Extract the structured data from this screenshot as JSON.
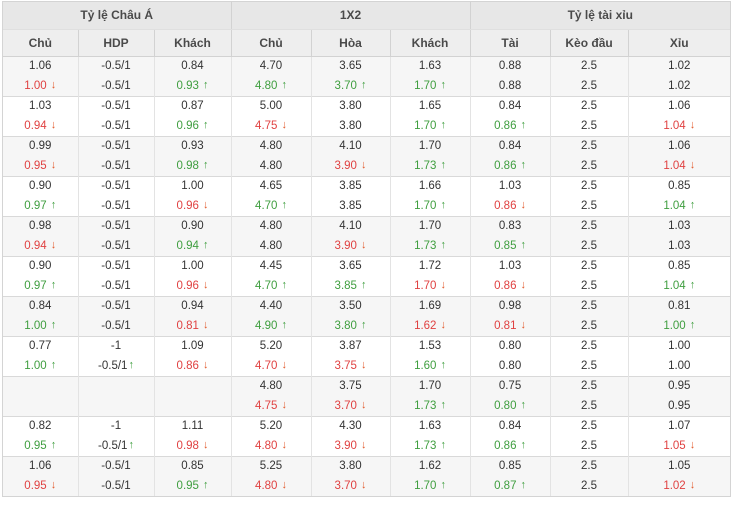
{
  "colors": {
    "up_arrow": "#3f9e3f",
    "down_arrow": "#e2582a",
    "red_text": "#e04141",
    "green_text": "#3f9e3f",
    "header_bg": "#e7e7e7",
    "subheader_bg": "#eeeeee",
    "row_alt_bg": "#f6f6f6",
    "border_outer": "#d4d4d4",
    "border_mid": "#d2d2d2",
    "border_light": "#e3e3e3",
    "text_main": "#333333",
    "text_header": "#4a4a4a"
  },
  "table": {
    "groups": [
      {
        "label": "Tỷ lệ Châu Á",
        "span": 3
      },
      {
        "label": "1X2",
        "span": 3
      },
      {
        "label": "Tỷ lệ tài xỉu",
        "span": 3
      }
    ],
    "columns": [
      "Chủ",
      "HDP",
      "Khách",
      "Chủ",
      "Hòa",
      "Khách",
      "Tài",
      "Kèo đầu",
      "Xỉu"
    ],
    "pairs": [
      {
        "rows": [
          [
            {
              "v": "1.06"
            },
            {
              "v": "-0.5/1"
            },
            {
              "v": "0.84"
            },
            {
              "v": "4.70"
            },
            {
              "v": "3.65"
            },
            {
              "v": "1.63"
            },
            {
              "v": "0.88"
            },
            {
              "v": "2.5"
            },
            {
              "v": "1.02"
            }
          ],
          [
            {
              "v": "1.00",
              "t": "down",
              "c": "red"
            },
            {
              "v": "-0.5/1"
            },
            {
              "v": "0.93",
              "t": "up",
              "c": "green"
            },
            {
              "v": "4.80",
              "t": "up",
              "c": "green"
            },
            {
              "v": "3.70",
              "t": "up",
              "c": "green"
            },
            {
              "v": "1.70",
              "t": "up",
              "c": "green"
            },
            {
              "v": "0.88"
            },
            {
              "v": "2.5"
            },
            {
              "v": "1.02"
            }
          ]
        ]
      },
      {
        "rows": [
          [
            {
              "v": "1.03"
            },
            {
              "v": "-0.5/1"
            },
            {
              "v": "0.87"
            },
            {
              "v": "5.00"
            },
            {
              "v": "3.80"
            },
            {
              "v": "1.65"
            },
            {
              "v": "0.84"
            },
            {
              "v": "2.5"
            },
            {
              "v": "1.06"
            }
          ],
          [
            {
              "v": "0.94",
              "t": "down",
              "c": "red"
            },
            {
              "v": "-0.5/1"
            },
            {
              "v": "0.96",
              "t": "up",
              "c": "green"
            },
            {
              "v": "4.75",
              "t": "down",
              "c": "red"
            },
            {
              "v": "3.80"
            },
            {
              "v": "1.70",
              "t": "up",
              "c": "green"
            },
            {
              "v": "0.86",
              "t": "up",
              "c": "green"
            },
            {
              "v": "2.5"
            },
            {
              "v": "1.04",
              "t": "down",
              "c": "red"
            }
          ]
        ]
      },
      {
        "rows": [
          [
            {
              "v": "0.99"
            },
            {
              "v": "-0.5/1"
            },
            {
              "v": "0.93"
            },
            {
              "v": "4.80"
            },
            {
              "v": "4.10"
            },
            {
              "v": "1.70"
            },
            {
              "v": "0.84"
            },
            {
              "v": "2.5"
            },
            {
              "v": "1.06"
            }
          ],
          [
            {
              "v": "0.95",
              "t": "down",
              "c": "red"
            },
            {
              "v": "-0.5/1"
            },
            {
              "v": "0.98",
              "t": "up",
              "c": "green"
            },
            {
              "v": "4.80"
            },
            {
              "v": "3.90",
              "t": "down",
              "c": "red"
            },
            {
              "v": "1.73",
              "t": "up",
              "c": "green"
            },
            {
              "v": "0.86",
              "t": "up",
              "c": "green"
            },
            {
              "v": "2.5"
            },
            {
              "v": "1.04",
              "t": "down",
              "c": "red"
            }
          ]
        ]
      },
      {
        "rows": [
          [
            {
              "v": "0.90"
            },
            {
              "v": "-0.5/1"
            },
            {
              "v": "1.00"
            },
            {
              "v": "4.65"
            },
            {
              "v": "3.85"
            },
            {
              "v": "1.66"
            },
            {
              "v": "1.03"
            },
            {
              "v": "2.5"
            },
            {
              "v": "0.85"
            }
          ],
          [
            {
              "v": "0.97",
              "t": "up",
              "c": "green"
            },
            {
              "v": "-0.5/1"
            },
            {
              "v": "0.96",
              "t": "down",
              "c": "red"
            },
            {
              "v": "4.70",
              "t": "up",
              "c": "green"
            },
            {
              "v": "3.85"
            },
            {
              "v": "1.70",
              "t": "up",
              "c": "green"
            },
            {
              "v": "0.86",
              "t": "down",
              "c": "red"
            },
            {
              "v": "2.5"
            },
            {
              "v": "1.04",
              "t": "up",
              "c": "green"
            }
          ]
        ]
      },
      {
        "rows": [
          [
            {
              "v": "0.98"
            },
            {
              "v": "-0.5/1"
            },
            {
              "v": "0.90"
            },
            {
              "v": "4.80"
            },
            {
              "v": "4.10"
            },
            {
              "v": "1.70"
            },
            {
              "v": "0.83"
            },
            {
              "v": "2.5"
            },
            {
              "v": "1.03"
            }
          ],
          [
            {
              "v": "0.94",
              "t": "down",
              "c": "red"
            },
            {
              "v": "-0.5/1"
            },
            {
              "v": "0.94",
              "t": "up",
              "c": "green"
            },
            {
              "v": "4.80"
            },
            {
              "v": "3.90",
              "t": "down",
              "c": "red"
            },
            {
              "v": "1.73",
              "t": "up",
              "c": "green"
            },
            {
              "v": "0.85",
              "t": "up",
              "c": "green"
            },
            {
              "v": "2.5"
            },
            {
              "v": "1.03"
            }
          ]
        ]
      },
      {
        "rows": [
          [
            {
              "v": "0.90"
            },
            {
              "v": "-0.5/1"
            },
            {
              "v": "1.00"
            },
            {
              "v": "4.45"
            },
            {
              "v": "3.65"
            },
            {
              "v": "1.72"
            },
            {
              "v": "1.03"
            },
            {
              "v": "2.5"
            },
            {
              "v": "0.85"
            }
          ],
          [
            {
              "v": "0.97",
              "t": "up",
              "c": "green"
            },
            {
              "v": "-0.5/1"
            },
            {
              "v": "0.96",
              "t": "down",
              "c": "red"
            },
            {
              "v": "4.70",
              "t": "up",
              "c": "green"
            },
            {
              "v": "3.85",
              "t": "up",
              "c": "green"
            },
            {
              "v": "1.70",
              "t": "down",
              "c": "red"
            },
            {
              "v": "0.86",
              "t": "down",
              "c": "red"
            },
            {
              "v": "2.5"
            },
            {
              "v": "1.04",
              "t": "up",
              "c": "green"
            }
          ]
        ]
      },
      {
        "rows": [
          [
            {
              "v": "0.84"
            },
            {
              "v": "-0.5/1"
            },
            {
              "v": "0.94"
            },
            {
              "v": "4.40"
            },
            {
              "v": "3.50"
            },
            {
              "v": "1.69"
            },
            {
              "v": "0.98"
            },
            {
              "v": "2.5"
            },
            {
              "v": "0.81"
            }
          ],
          [
            {
              "v": "1.00",
              "t": "up",
              "c": "green"
            },
            {
              "v": "-0.5/1"
            },
            {
              "v": "0.81",
              "t": "down",
              "c": "red"
            },
            {
              "v": "4.90",
              "t": "up",
              "c": "green"
            },
            {
              "v": "3.80",
              "t": "up",
              "c": "green"
            },
            {
              "v": "1.62",
              "t": "down",
              "c": "red"
            },
            {
              "v": "0.81",
              "t": "down",
              "c": "red"
            },
            {
              "v": "2.5"
            },
            {
              "v": "1.00",
              "t": "up",
              "c": "green"
            }
          ]
        ]
      },
      {
        "rows": [
          [
            {
              "v": "0.77"
            },
            {
              "v": "-1"
            },
            {
              "v": "1.09"
            },
            {
              "v": "5.20"
            },
            {
              "v": "3.87"
            },
            {
              "v": "1.53"
            },
            {
              "v": "0.80"
            },
            {
              "v": "2.5"
            },
            {
              "v": "1.00"
            }
          ],
          [
            {
              "v": "1.00",
              "t": "up",
              "c": "green"
            },
            {
              "v": "-0.5/1",
              "t": "up",
              "tight": true
            },
            {
              "v": "0.86",
              "t": "down",
              "c": "red"
            },
            {
              "v": "4.70",
              "t": "down",
              "c": "red"
            },
            {
              "v": "3.75",
              "t": "down",
              "c": "red"
            },
            {
              "v": "1.60",
              "t": "up",
              "c": "green"
            },
            {
              "v": "0.80"
            },
            {
              "v": "2.5"
            },
            {
              "v": "1.00"
            }
          ]
        ]
      },
      {
        "rows": [
          [
            {
              "v": ""
            },
            {
              "v": ""
            },
            {
              "v": ""
            },
            {
              "v": "4.80"
            },
            {
              "v": "3.75"
            },
            {
              "v": "1.70"
            },
            {
              "v": "0.75"
            },
            {
              "v": "2.5"
            },
            {
              "v": "0.95"
            }
          ],
          [
            {
              "v": ""
            },
            {
              "v": ""
            },
            {
              "v": ""
            },
            {
              "v": "4.75",
              "t": "down",
              "c": "red"
            },
            {
              "v": "3.70",
              "t": "down",
              "c": "red"
            },
            {
              "v": "1.73",
              "t": "up",
              "c": "green"
            },
            {
              "v": "0.80",
              "t": "up",
              "c": "green"
            },
            {
              "v": "2.5"
            },
            {
              "v": "0.95"
            }
          ]
        ]
      },
      {
        "rows": [
          [
            {
              "v": "0.82"
            },
            {
              "v": "-1"
            },
            {
              "v": "1.11"
            },
            {
              "v": "5.20"
            },
            {
              "v": "4.30"
            },
            {
              "v": "1.63"
            },
            {
              "v": "0.84"
            },
            {
              "v": "2.5"
            },
            {
              "v": "1.07"
            }
          ],
          [
            {
              "v": "0.95",
              "t": "up",
              "c": "green"
            },
            {
              "v": "-0.5/1",
              "t": "up",
              "tight": true
            },
            {
              "v": "0.98",
              "t": "down",
              "c": "red"
            },
            {
              "v": "4.80",
              "t": "down",
              "c": "red"
            },
            {
              "v": "3.90",
              "t": "down",
              "c": "red"
            },
            {
              "v": "1.73",
              "t": "up",
              "c": "green"
            },
            {
              "v": "0.86",
              "t": "up",
              "c": "green"
            },
            {
              "v": "2.5"
            },
            {
              "v": "1.05",
              "t": "down",
              "c": "red"
            }
          ]
        ]
      },
      {
        "rows": [
          [
            {
              "v": "1.06"
            },
            {
              "v": "-0.5/1"
            },
            {
              "v": "0.85"
            },
            {
              "v": "5.25"
            },
            {
              "v": "3.80"
            },
            {
              "v": "1.62"
            },
            {
              "v": "0.85"
            },
            {
              "v": "2.5"
            },
            {
              "v": "1.05"
            }
          ],
          [
            {
              "v": "0.95",
              "t": "down",
              "c": "red"
            },
            {
              "v": "-0.5/1"
            },
            {
              "v": "0.95",
              "t": "up",
              "c": "green"
            },
            {
              "v": "4.80",
              "t": "down",
              "c": "red"
            },
            {
              "v": "3.70",
              "t": "down",
              "c": "red"
            },
            {
              "v": "1.70",
              "t": "up",
              "c": "green"
            },
            {
              "v": "0.87",
              "t": "up",
              "c": "green"
            },
            {
              "v": "2.5"
            },
            {
              "v": "1.02",
              "t": "down",
              "c": "red"
            }
          ]
        ]
      }
    ]
  }
}
